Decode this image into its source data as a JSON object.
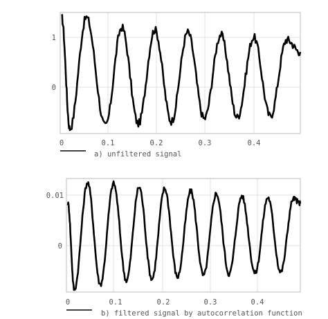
{
  "chart_data": [
    {
      "type": "line",
      "caption": "a) unfiltered signal",
      "x_ticks": [
        0,
        0.1,
        0.2,
        0.3,
        0.4
      ],
      "x_tick_labels": [
        "0",
        "0.1",
        "0.2",
        "0.3",
        "0.4"
      ],
      "y_ticks": [
        1,
        0
      ],
      "y_tick_labels": [
        "1",
        "0"
      ],
      "xlim": [
        -0.003,
        0.492
      ],
      "ylim": [
        -0.95,
        1.5
      ],
      "grid": true,
      "series": [
        {
          "color": "#000000",
          "x": [
            0.0,
            0.017,
            0.051,
            0.09,
            0.124,
            0.158,
            0.192,
            0.226,
            0.26,
            0.294,
            0.328,
            0.362,
            0.396,
            0.43,
            0.464,
            0.492
          ],
          "y": [
            1.4,
            -0.85,
            1.4,
            -0.8,
            1.2,
            -0.75,
            1.15,
            -0.7,
            1.1,
            -0.65,
            1.05,
            -0.62,
            1.0,
            -0.6,
            0.95,
            0.7
          ],
          "noise": 0.08
        }
      ]
    },
    {
      "type": "line",
      "caption": "b) filtered signal by autocorrelation function",
      "x_ticks": [
        0,
        0.1,
        0.2,
        0.3,
        0.4
      ],
      "x_tick_labels": [
        "0",
        "0.1",
        "0.2",
        "0.3",
        "0.4"
      ],
      "y_ticks": [
        0.01,
        0
      ],
      "y_tick_labels": [
        "0.01",
        "0"
      ],
      "xlim": [
        -0.003,
        0.473
      ],
      "ylim": [
        -0.0093,
        0.0135
      ],
      "grid": true,
      "series": [
        {
          "color": "#000000",
          "x": [
            0.0,
            0.013,
            0.04,
            0.066,
            0.093,
            0.119,
            0.145,
            0.171,
            0.197,
            0.223,
            0.25,
            0.276,
            0.302,
            0.328,
            0.354,
            0.381,
            0.407,
            0.433,
            0.459,
            0.473
          ],
          "y": [
            0.0085,
            -0.0088,
            0.0127,
            -0.0078,
            0.0125,
            -0.007,
            0.0118,
            -0.0067,
            0.0115,
            -0.0063,
            0.011,
            -0.006,
            0.0105,
            -0.0057,
            0.01,
            -0.0055,
            0.0097,
            -0.0053,
            0.0095,
            0.0085
          ],
          "noise": 0.0005
        }
      ]
    }
  ]
}
